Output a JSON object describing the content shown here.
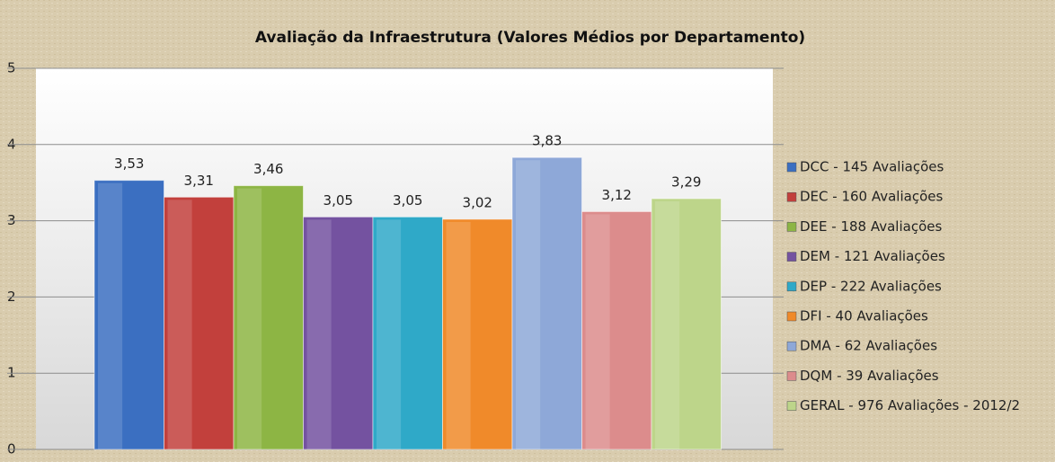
{
  "chart_data": {
    "type": "bar",
    "title": "Avaliação  da Infraestrutura (Valores Médios por Departamento)",
    "categories": [
      null
    ],
    "series": [
      {
        "name": "DCC - 145 Avaliações",
        "color": "#3b6fc1",
        "values": [
          3.53
        ],
        "value_labels": [
          "3,53"
        ]
      },
      {
        "name": "DEC - 160 Avaliações",
        "color": "#c2403c",
        "values": [
          3.31
        ],
        "value_labels": [
          "3,31"
        ]
      },
      {
        "name": "DEE - 188 Avaliações",
        "color": "#8db544",
        "values": [
          3.46
        ],
        "value_labels": [
          "3,46"
        ]
      },
      {
        "name": "DEM - 121 Avaliações",
        "color": "#7452a0",
        "values": [
          3.05
        ],
        "value_labels": [
          "3,05"
        ]
      },
      {
        "name": "DEP - 222 Avaliações",
        "color": "#2fa9c8",
        "values": [
          3.05
        ],
        "value_labels": [
          "3,05"
        ]
      },
      {
        "name": "DFI - 40 Avaliações",
        "color": "#f08a2a",
        "values": [
          3.02
        ],
        "value_labels": [
          "3,02"
        ]
      },
      {
        "name": "DMA - 62 Avaliações",
        "color": "#8ea8d8",
        "values": [
          3.83
        ],
        "value_labels": [
          "3,83"
        ]
      },
      {
        "name": "DQM - 39 Avaliações",
        "color": "#dc8c8c",
        "values": [
          3.12
        ],
        "value_labels": [
          "3,12"
        ]
      },
      {
        "name": "GERAL - 976 Avaliações - 2012/2",
        "color": "#bdd58a",
        "values": [
          3.29
        ],
        "value_labels": [
          "3,29"
        ]
      }
    ],
    "ylim": [
      0,
      5
    ],
    "yticks": [
      0,
      1,
      2,
      3,
      4,
      5
    ],
    "grid": true,
    "legend": "right"
  }
}
